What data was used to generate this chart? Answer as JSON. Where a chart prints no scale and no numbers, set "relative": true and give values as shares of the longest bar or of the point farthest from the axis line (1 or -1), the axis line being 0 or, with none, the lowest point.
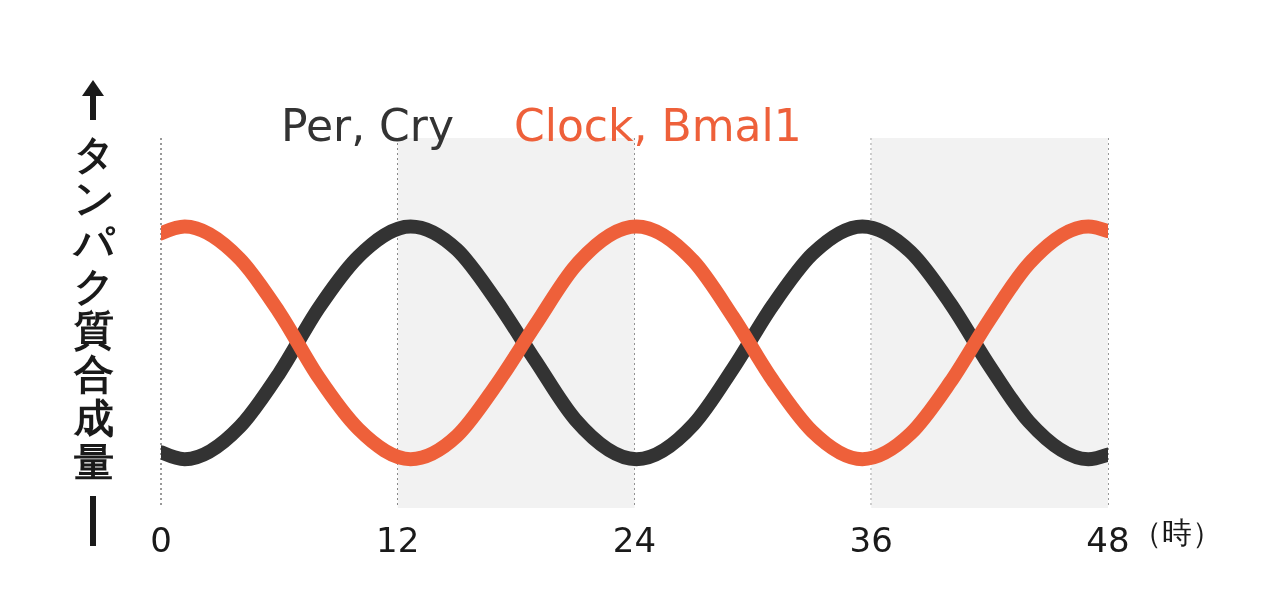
{
  "chart_data": {
    "type": "line",
    "relative": true,
    "ylabel": "タンパク質合成量",
    "xlabel": "（時）",
    "xlim": [
      0,
      48
    ],
    "xticks": [
      0,
      12,
      24,
      36,
      48
    ],
    "grid": "x",
    "legend": "top",
    "marker": "none",
    "line_style": "solid",
    "bands": [
      {
        "axis": "x",
        "from": 12,
        "to": 24,
        "color": "#f2f2f2"
      },
      {
        "axis": "x",
        "from": 36,
        "to": 48,
        "color": "#f2f2f2"
      }
    ],
    "series": [
      {
        "name": "Per, Cry",
        "color": "#333333",
        "x": [
          0,
          1.2,
          4,
          6,
          8,
          10,
          12.65,
          15,
          17,
          19,
          21,
          24.1,
          27,
          29,
          31,
          33,
          35.55,
          38,
          40,
          42,
          44,
          47,
          48
        ],
        "values": [
          0.03,
          0,
          0.14,
          0.37,
          0.65,
          0.87,
          1,
          0.9,
          0.68,
          0.42,
          0.17,
          0,
          0.15,
          0.39,
          0.66,
          0.88,
          1,
          0.89,
          0.67,
          0.4,
          0.16,
          0,
          0.02
        ]
      },
      {
        "name": "Clock, Bmal1",
        "color": "#ee603a",
        "x": [
          0,
          1.2,
          4,
          6,
          8,
          10,
          12.65,
          15,
          17,
          19,
          21,
          24.1,
          27,
          29,
          31,
          33,
          35.55,
          38,
          40,
          42,
          44,
          47,
          48
        ],
        "values": [
          0.97,
          1,
          0.86,
          0.63,
          0.35,
          0.13,
          0,
          0.1,
          0.32,
          0.58,
          0.83,
          1,
          0.85,
          0.61,
          0.34,
          0.12,
          0,
          0.11,
          0.33,
          0.6,
          0.84,
          1,
          0.98
        ]
      }
    ]
  }
}
